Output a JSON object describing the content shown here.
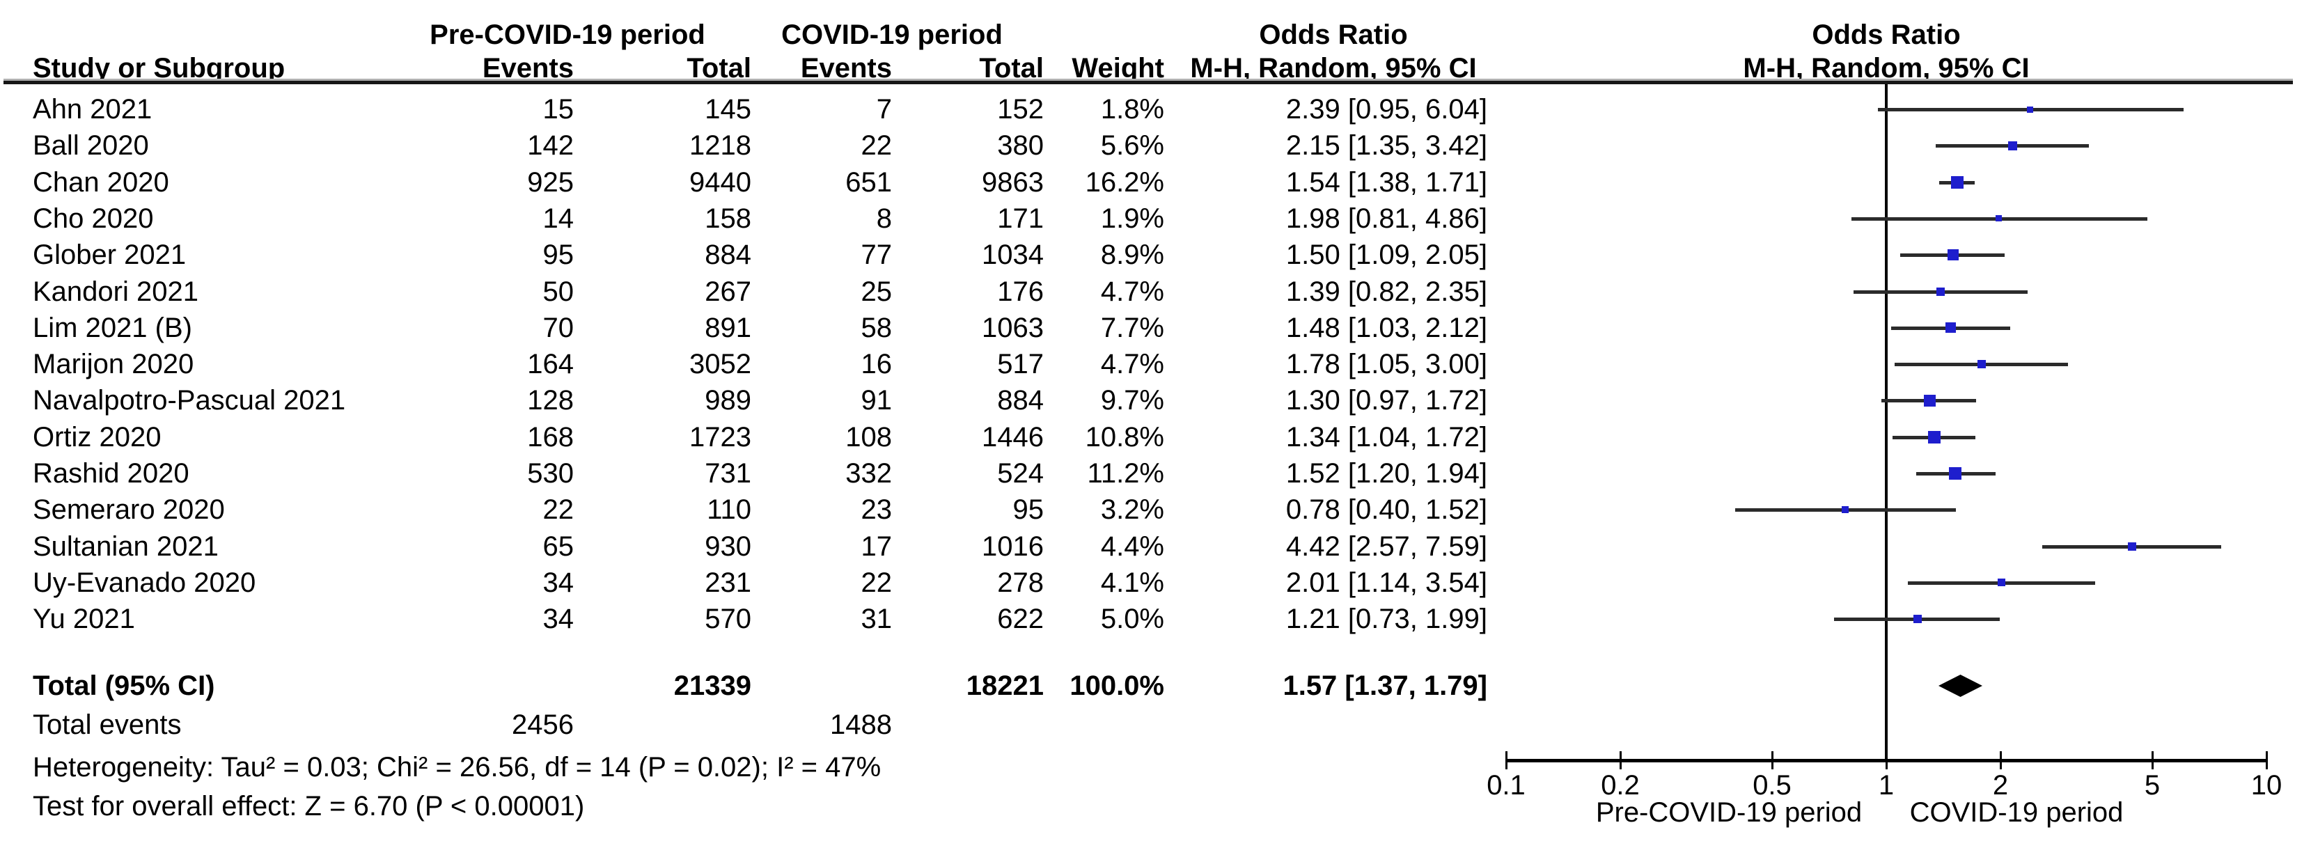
{
  "header": {
    "group1": "Pre-COVID-19 period",
    "group2": "COVID-19 period",
    "or_title": "Odds Ratio",
    "or_subtitle": "M-H, Random, 95% CI",
    "plot_title": "Odds Ratio",
    "plot_subtitle": "M-H, Random, 95% CI",
    "col_study": "Study or Subgroup",
    "col_events": "Events",
    "col_total": "Total",
    "col_weight": "Weight"
  },
  "footer": {
    "total_events_label": "Total events",
    "heterogeneity": "Heterogeneity: Tau² = 0.03; Chi² = 26.56, df = 14 (P = 0.02); I² = 47%",
    "overall_effect": "Test for overall effect: Z = 6.70 (P < 0.00001)"
  },
  "chart_data": {
    "type": "forest",
    "x_scale": "log10",
    "xlim": [
      0.1,
      10
    ],
    "x_ticks": [
      0.1,
      0.2,
      0.5,
      1,
      2,
      5,
      10
    ],
    "x_axis_left_label": "Pre-COVID-19 period",
    "x_axis_right_label": "COVID-19 period",
    "marker_color": "#1e1ecd",
    "effect_measure": "Odds Ratio, M-H, Random, 95% CI",
    "studies": [
      {
        "name": "Ahn 2021",
        "events1": "15",
        "total1": "145",
        "events2": "7",
        "total2": "152",
        "weight": "1.8%",
        "or": 2.39,
        "ci_low": 0.95,
        "ci_high": 6.04,
        "or_text": "2.39 [0.95, 6.04]"
      },
      {
        "name": "Ball 2020",
        "events1": "142",
        "total1": "1218",
        "events2": "22",
        "total2": "380",
        "weight": "5.6%",
        "or": 2.15,
        "ci_low": 1.35,
        "ci_high": 3.42,
        "or_text": "2.15 [1.35, 3.42]"
      },
      {
        "name": "Chan 2020",
        "events1": "925",
        "total1": "9440",
        "events2": "651",
        "total2": "9863",
        "weight": "16.2%",
        "or": 1.54,
        "ci_low": 1.38,
        "ci_high": 1.71,
        "or_text": "1.54 [1.38, 1.71]"
      },
      {
        "name": "Cho 2020",
        "events1": "14",
        "total1": "158",
        "events2": "8",
        "total2": "171",
        "weight": "1.9%",
        "or": 1.98,
        "ci_low": 0.81,
        "ci_high": 4.86,
        "or_text": "1.98 [0.81, 4.86]"
      },
      {
        "name": "Glober 2021",
        "events1": "95",
        "total1": "884",
        "events2": "77",
        "total2": "1034",
        "weight": "8.9%",
        "or": 1.5,
        "ci_low": 1.09,
        "ci_high": 2.05,
        "or_text": "1.50 [1.09, 2.05]"
      },
      {
        "name": "Kandori 2021",
        "events1": "50",
        "total1": "267",
        "events2": "25",
        "total2": "176",
        "weight": "4.7%",
        "or": 1.39,
        "ci_low": 0.82,
        "ci_high": 2.35,
        "or_text": "1.39 [0.82, 2.35]"
      },
      {
        "name": "Lim 2021 (B)",
        "events1": "70",
        "total1": "891",
        "events2": "58",
        "total2": "1063",
        "weight": "7.7%",
        "or": 1.48,
        "ci_low": 1.03,
        "ci_high": 2.12,
        "or_text": "1.48 [1.03, 2.12]"
      },
      {
        "name": "Marijon 2020",
        "events1": "164",
        "total1": "3052",
        "events2": "16",
        "total2": "517",
        "weight": "4.7%",
        "or": 1.78,
        "ci_low": 1.05,
        "ci_high": 3.0,
        "or_text": "1.78 [1.05, 3.00]"
      },
      {
        "name": "Navalpotro-Pascual 2021",
        "events1": "128",
        "total1": "989",
        "events2": "91",
        "total2": "884",
        "weight": "9.7%",
        "or": 1.3,
        "ci_low": 0.97,
        "ci_high": 1.72,
        "or_text": "1.30 [0.97, 1.72]"
      },
      {
        "name": "Ortiz 2020",
        "events1": "168",
        "total1": "1723",
        "events2": "108",
        "total2": "1446",
        "weight": "10.8%",
        "or": 1.34,
        "ci_low": 1.04,
        "ci_high": 1.72,
        "or_text": "1.34 [1.04, 1.72]"
      },
      {
        "name": "Rashid 2020",
        "events1": "530",
        "total1": "731",
        "events2": "332",
        "total2": "524",
        "weight": "11.2%",
        "or": 1.52,
        "ci_low": 1.2,
        "ci_high": 1.94,
        "or_text": "1.52 [1.20, 1.94]"
      },
      {
        "name": "Semeraro 2020",
        "events1": "22",
        "total1": "110",
        "events2": "23",
        "total2": "95",
        "weight": "3.2%",
        "or": 0.78,
        "ci_low": 0.4,
        "ci_high": 1.52,
        "or_text": "0.78 [0.40, 1.52]"
      },
      {
        "name": "Sultanian 2021",
        "events1": "65",
        "total1": "930",
        "events2": "17",
        "total2": "1016",
        "weight": "4.4%",
        "or": 4.42,
        "ci_low": 2.57,
        "ci_high": 7.59,
        "or_text": "4.42 [2.57, 7.59]"
      },
      {
        "name": "Uy-Evanado 2020",
        "events1": "34",
        "total1": "231",
        "events2": "22",
        "total2": "278",
        "weight": "4.1%",
        "or": 2.01,
        "ci_low": 1.14,
        "ci_high": 3.54,
        "or_text": "2.01 [1.14, 3.54]"
      },
      {
        "name": "Yu 2021",
        "events1": "34",
        "total1": "570",
        "events2": "31",
        "total2": "622",
        "weight": "5.0%",
        "or": 1.21,
        "ci_low": 0.73,
        "ci_high": 1.99,
        "or_text": "1.21 [0.73, 1.99]"
      }
    ],
    "total": {
      "label": "Total (95% CI)",
      "total1": "21339",
      "total2": "18221",
      "weight": "100.0%",
      "or": 1.57,
      "ci_low": 1.37,
      "ci_high": 1.79,
      "or_text": "1.57 [1.37, 1.79]",
      "events1": "2456",
      "events2": "1488"
    }
  }
}
